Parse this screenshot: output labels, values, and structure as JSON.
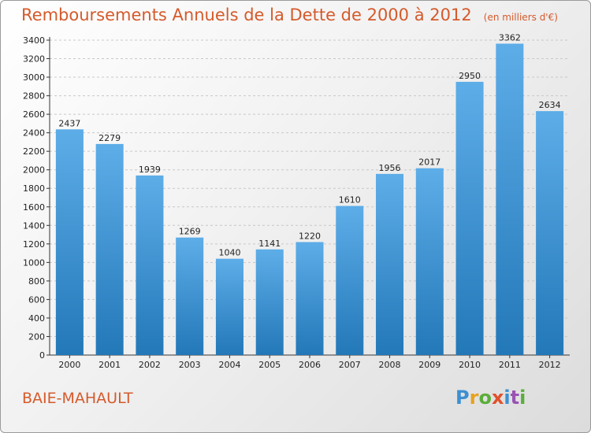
{
  "title": "Remboursements Annuels de la Dette de 2000 à 2012",
  "unit_note": "(en milliers d'€)",
  "city": "BAIE-MAHAULT",
  "logo": "Proxiti",
  "colors": {
    "title": "#d55a2b",
    "bar_top": "#5dade8",
    "bar_bottom": "#2378b8",
    "grid": "#c8c8c8",
    "axis": "#333333"
  },
  "chart_data": {
    "type": "bar",
    "categories": [
      "2000",
      "2001",
      "2002",
      "2003",
      "2004",
      "2005",
      "2006",
      "2007",
      "2008",
      "2009",
      "2010",
      "2011",
      "2012"
    ],
    "values": [
      2437,
      2279,
      1939,
      1269,
      1040,
      1141,
      1220,
      1610,
      1956,
      2017,
      2950,
      3362,
      2634
    ],
    "ylim": [
      0,
      3400
    ],
    "yticks": [
      0,
      200,
      400,
      600,
      800,
      1000,
      1200,
      1400,
      1600,
      1800,
      2000,
      2200,
      2400,
      2600,
      2800,
      3000,
      3200,
      3400
    ],
    "grid": true,
    "xlabel": "",
    "ylabel": ""
  }
}
